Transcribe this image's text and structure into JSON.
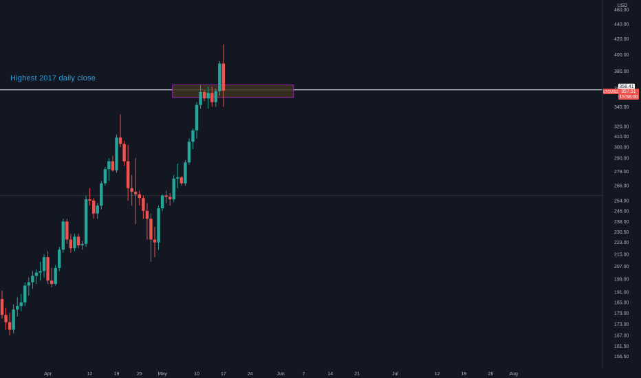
{
  "chart_data": {
    "type": "candlestick",
    "symbol_label": "LTCUSD",
    "currency_label": "USD",
    "price_labels": {
      "resistance": "358.41",
      "last": "357.51",
      "countdown": "15:58:00"
    },
    "annotation": "Highest 2017 daily close",
    "ylim": [
      152,
      470
    ],
    "y_scale": "log",
    "y_ticks": [
      "460.00",
      "440.00",
      "420.00",
      "400.00",
      "380.00",
      "360.00",
      "340.00",
      "320.00",
      "310.00",
      "300.00",
      "290.00",
      "278.00",
      "266.00",
      "254.00",
      "246.00",
      "238.00",
      "230.50",
      "223.00",
      "215.00",
      "207.00",
      "199.00",
      "191.00",
      "185.00",
      "179.00",
      "173.00",
      "167.00",
      "161.50",
      "156.50"
    ],
    "x_ticks": [
      "Apr",
      "12",
      "19",
      "25",
      "May",
      "10",
      "17",
      "24",
      "Jun",
      "7",
      "14",
      "21",
      "Jul",
      "12",
      "19",
      "26",
      "Aug"
    ],
    "horizontal_lines": [
      {
        "name": "resistance",
        "value": 358.41,
        "color": "#ffffff"
      },
      {
        "name": "level",
        "value": 258,
        "color": "#2a2e39"
      }
    ],
    "zone": {
      "from": "May 4",
      "to": "Jun 4",
      "low": 350,
      "high": 364,
      "border": "#9c27b0",
      "fill": "#3a3320"
    },
    "colors": {
      "up": "#26a69a",
      "down": "#ef5350",
      "background": "#131722"
    },
    "candles": [
      {
        "date": "Mar 20",
        "o": 187,
        "h": 192,
        "l": 176,
        "c": 178
      },
      {
        "date": "Mar 21",
        "o": 178,
        "h": 182,
        "l": 170,
        "c": 174
      },
      {
        "date": "Mar 22",
        "o": 174,
        "h": 179,
        "l": 167,
        "c": 170
      },
      {
        "date": "Mar 23",
        "o": 170,
        "h": 184,
        "l": 168,
        "c": 181
      },
      {
        "date": "Mar 24",
        "o": 181,
        "h": 188,
        "l": 177,
        "c": 183
      },
      {
        "date": "Mar 25",
        "o": 183,
        "h": 190,
        "l": 180,
        "c": 185
      },
      {
        "date": "Mar 26",
        "o": 185,
        "h": 197,
        "l": 183,
        "c": 195
      },
      {
        "date": "Mar 27",
        "o": 195,
        "h": 200,
        "l": 189,
        "c": 197
      },
      {
        "date": "Mar 28",
        "o": 197,
        "h": 204,
        "l": 193,
        "c": 201
      },
      {
        "date": "Mar 29",
        "o": 201,
        "h": 205,
        "l": 196,
        "c": 203
      },
      {
        "date": "Mar 30",
        "o": 203,
        "h": 210,
        "l": 198,
        "c": 204
      },
      {
        "date": "Mar 31",
        "o": 204,
        "h": 215,
        "l": 200,
        "c": 213
      },
      {
        "date": "Apr 1",
        "o": 213,
        "h": 217,
        "l": 196,
        "c": 198
      },
      {
        "date": "Apr 2",
        "o": 198,
        "h": 206,
        "l": 194,
        "c": 196
      },
      {
        "date": "Apr 3",
        "o": 196,
        "h": 208,
        "l": 195,
        "c": 206
      },
      {
        "date": "Apr 4",
        "o": 206,
        "h": 220,
        "l": 204,
        "c": 218
      },
      {
        "date": "Apr 5",
        "o": 218,
        "h": 240,
        "l": 216,
        "c": 238
      },
      {
        "date": "Apr 6",
        "o": 238,
        "h": 240,
        "l": 222,
        "c": 225
      },
      {
        "date": "Apr 7",
        "o": 225,
        "h": 229,
        "l": 216,
        "c": 219
      },
      {
        "date": "Apr 8",
        "o": 219,
        "h": 229,
        "l": 217,
        "c": 227
      },
      {
        "date": "Apr 9",
        "o": 227,
        "h": 229,
        "l": 219,
        "c": 221
      },
      {
        "date": "Apr 10",
        "o": 221,
        "h": 224,
        "l": 218,
        "c": 222
      },
      {
        "date": "Apr 11",
        "o": 222,
        "h": 258,
        "l": 220,
        "c": 255
      },
      {
        "date": "Apr 12",
        "o": 255,
        "h": 264,
        "l": 250,
        "c": 254
      },
      {
        "date": "Apr 13",
        "o": 254,
        "h": 256,
        "l": 240,
        "c": 244
      },
      {
        "date": "Apr 14",
        "o": 244,
        "h": 252,
        "l": 240,
        "c": 250
      },
      {
        "date": "Apr 15",
        "o": 250,
        "h": 270,
        "l": 247,
        "c": 268
      },
      {
        "date": "Apr 16",
        "o": 268,
        "h": 282,
        "l": 266,
        "c": 280
      },
      {
        "date": "Apr 17",
        "o": 280,
        "h": 290,
        "l": 270,
        "c": 287
      },
      {
        "date": "Apr 18",
        "o": 287,
        "h": 292,
        "l": 278,
        "c": 279
      },
      {
        "date": "Apr 19",
        "o": 279,
        "h": 312,
        "l": 277,
        "c": 309
      },
      {
        "date": "Apr 20",
        "o": 309,
        "h": 332,
        "l": 300,
        "c": 303
      },
      {
        "date": "Apr 21",
        "o": 303,
        "h": 306,
        "l": 283,
        "c": 287
      },
      {
        "date": "Apr 22",
        "o": 287,
        "h": 302,
        "l": 254,
        "c": 264
      },
      {
        "date": "Apr 23",
        "o": 264,
        "h": 275,
        "l": 250,
        "c": 261
      },
      {
        "date": "Apr 24",
        "o": 261,
        "h": 290,
        "l": 236,
        "c": 259
      },
      {
        "date": "Apr 25",
        "o": 259,
        "h": 262,
        "l": 250,
        "c": 256
      },
      {
        "date": "Apr 26",
        "o": 256,
        "h": 258,
        "l": 240,
        "c": 246
      },
      {
        "date": "Apr 27",
        "o": 246,
        "h": 252,
        "l": 225,
        "c": 240
      },
      {
        "date": "Apr 28",
        "o": 240,
        "h": 244,
        "l": 210,
        "c": 225
      },
      {
        "date": "Apr 29",
        "o": 225,
        "h": 234,
        "l": 213,
        "c": 223
      },
      {
        "date": "Apr 30",
        "o": 223,
        "h": 250,
        "l": 218,
        "c": 248
      },
      {
        "date": "May 1",
        "o": 248,
        "h": 259,
        "l": 246,
        "c": 258
      },
      {
        "date": "May 2",
        "o": 258,
        "h": 262,
        "l": 252,
        "c": 257
      },
      {
        "date": "May 3",
        "o": 257,
        "h": 260,
        "l": 250,
        "c": 255
      },
      {
        "date": "May 4",
        "o": 255,
        "h": 275,
        "l": 253,
        "c": 272
      },
      {
        "date": "May 5",
        "o": 272,
        "h": 285,
        "l": 264,
        "c": 273
      },
      {
        "date": "May 6",
        "o": 273,
        "h": 274,
        "l": 266,
        "c": 268
      },
      {
        "date": "May 7",
        "o": 268,
        "h": 288,
        "l": 266,
        "c": 286
      },
      {
        "date": "May 8",
        "o": 286,
        "h": 308,
        "l": 284,
        "c": 305
      },
      {
        "date": "May 9",
        "o": 305,
        "h": 318,
        "l": 298,
        "c": 316
      },
      {
        "date": "May 10",
        "o": 316,
        "h": 345,
        "l": 308,
        "c": 342
      },
      {
        "date": "May 11",
        "o": 342,
        "h": 364,
        "l": 338,
        "c": 356
      },
      {
        "date": "May 12",
        "o": 356,
        "h": 358,
        "l": 346,
        "c": 349
      },
      {
        "date": "May 13",
        "o": 349,
        "h": 362,
        "l": 338,
        "c": 355
      },
      {
        "date": "May 14",
        "o": 355,
        "h": 362,
        "l": 340,
        "c": 345
      },
      {
        "date": "May 15",
        "o": 345,
        "h": 360,
        "l": 340,
        "c": 357
      },
      {
        "date": "May 16",
        "o": 357,
        "h": 392,
        "l": 352,
        "c": 389
      },
      {
        "date": "May 17",
        "o": 389,
        "h": 413,
        "l": 340,
        "c": 357.51
      }
    ]
  }
}
